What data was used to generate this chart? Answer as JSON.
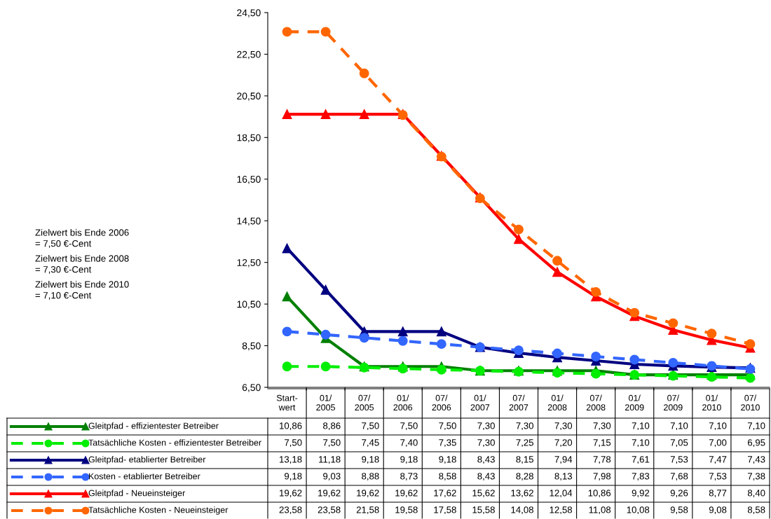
{
  "chart_data": {
    "type": "line",
    "categories": [
      "Start-\nwert",
      "01/\n2005",
      "07/\n2005",
      "01/\n2006",
      "07/\n2006",
      "01/\n2007",
      "07/\n2007",
      "01/\n2008",
      "07/\n2008",
      "01/\n2009",
      "07/\n2009",
      "01/\n2010",
      "07/\n2010"
    ],
    "ylim": [
      6.5,
      24.5
    ],
    "yticks": [
      {
        "value": 6.5,
        "label": "6,50"
      },
      {
        "value": 8.5,
        "label": "8,50"
      },
      {
        "value": 10.5,
        "label": "10,50"
      },
      {
        "value": 12.5,
        "label": "12,50"
      },
      {
        "value": 14.5,
        "label": "14,50"
      },
      {
        "value": 16.5,
        "label": "16,50"
      },
      {
        "value": 18.5,
        "label": "18,50"
      },
      {
        "value": 20.5,
        "label": "20,50"
      },
      {
        "value": 22.5,
        "label": "22,50"
      },
      {
        "value": 24.5,
        "label": "24,50"
      }
    ],
    "grid": false,
    "legend": "bottom",
    "annotations": [
      "Zielwert bis Ende 2006\n= 7,50 €-Cent",
      "Zielwert bis Ende 2008\n= 7,30 €-Cent",
      "Zielwert bis Ende 2010\n= 7,10 €-Cent"
    ],
    "series": [
      {
        "name": "Gleitpfad - effizientester Betreiber",
        "color": "#008000",
        "marker": "triangle",
        "line_style": "solid",
        "values": [
          10.86,
          8.86,
          7.5,
          7.5,
          7.5,
          7.3,
          7.3,
          7.3,
          7.3,
          7.1,
          7.1,
          7.1,
          7.1
        ],
        "value_labels": [
          "10,86",
          "8,86",
          "7,50",
          "7,50",
          "7,50",
          "7,30",
          "7,30",
          "7,30",
          "7,30",
          "7,10",
          "7,10",
          "7,10",
          "7,10"
        ]
      },
      {
        "name": "Tatsächliche Kosten - effizientester Betreiber",
        "color": "#00ee00",
        "marker": "circle",
        "line_style": "dashed",
        "values": [
          7.5,
          7.5,
          7.45,
          7.4,
          7.35,
          7.3,
          7.25,
          7.2,
          7.15,
          7.1,
          7.05,
          7.0,
          6.95
        ],
        "value_labels": [
          "7,50",
          "7,50",
          "7,45",
          "7,40",
          "7,35",
          "7,30",
          "7,25",
          "7,20",
          "7,15",
          "7,10",
          "7,05",
          "7,00",
          "6,95"
        ]
      },
      {
        "name": "Gleitpfad- etablierter Betreiber",
        "color": "#000080",
        "marker": "triangle",
        "line_style": "solid",
        "values": [
          13.18,
          11.18,
          9.18,
          9.18,
          9.18,
          8.43,
          8.15,
          7.94,
          7.78,
          7.61,
          7.53,
          7.47,
          7.43
        ],
        "value_labels": [
          "13,18",
          "11,18",
          "9,18",
          "9,18",
          "9,18",
          "8,43",
          "8,15",
          "7,94",
          "7,78",
          "7,61",
          "7,53",
          "7,47",
          "7,43"
        ]
      },
      {
        "name": "Kosten - etablierter Betreiber",
        "color": "#3366ff",
        "marker": "circle",
        "line_style": "dashed",
        "values": [
          9.18,
          9.03,
          8.88,
          8.73,
          8.58,
          8.43,
          8.28,
          8.13,
          7.98,
          7.83,
          7.68,
          7.53,
          7.38
        ],
        "value_labels": [
          "9,18",
          "9,03",
          "8,88",
          "8,73",
          "8,58",
          "8,43",
          "8,28",
          "8,13",
          "7,98",
          "7,83",
          "7,68",
          "7,53",
          "7,38"
        ]
      },
      {
        "name": "Gleitpfad - Neueinsteiger",
        "color": "#ff0000",
        "marker": "triangle",
        "line_style": "solid",
        "values": [
          19.62,
          19.62,
          19.62,
          19.62,
          17.62,
          15.62,
          13.62,
          12.04,
          10.86,
          9.92,
          9.26,
          8.77,
          8.4
        ],
        "value_labels": [
          "19,62",
          "19,62",
          "19,62",
          "19,62",
          "17,62",
          "15,62",
          "13,62",
          "12,04",
          "10,86",
          "9,92",
          "9,26",
          "8,77",
          "8,40"
        ]
      },
      {
        "name": "Tatsächliche Kosten - Neueinsteiger",
        "color": "#ff6600",
        "marker": "circle",
        "line_style": "dashed",
        "values": [
          23.58,
          23.58,
          21.58,
          19.58,
          17.58,
          15.58,
          14.08,
          12.58,
          11.08,
          10.08,
          9.58,
          9.08,
          8.58
        ],
        "value_labels": [
          "23,58",
          "23,58",
          "21,58",
          "19,58",
          "17,58",
          "15,58",
          "14,08",
          "12,58",
          "11,08",
          "10,08",
          "9,58",
          "9,08",
          "8,58"
        ]
      }
    ]
  }
}
